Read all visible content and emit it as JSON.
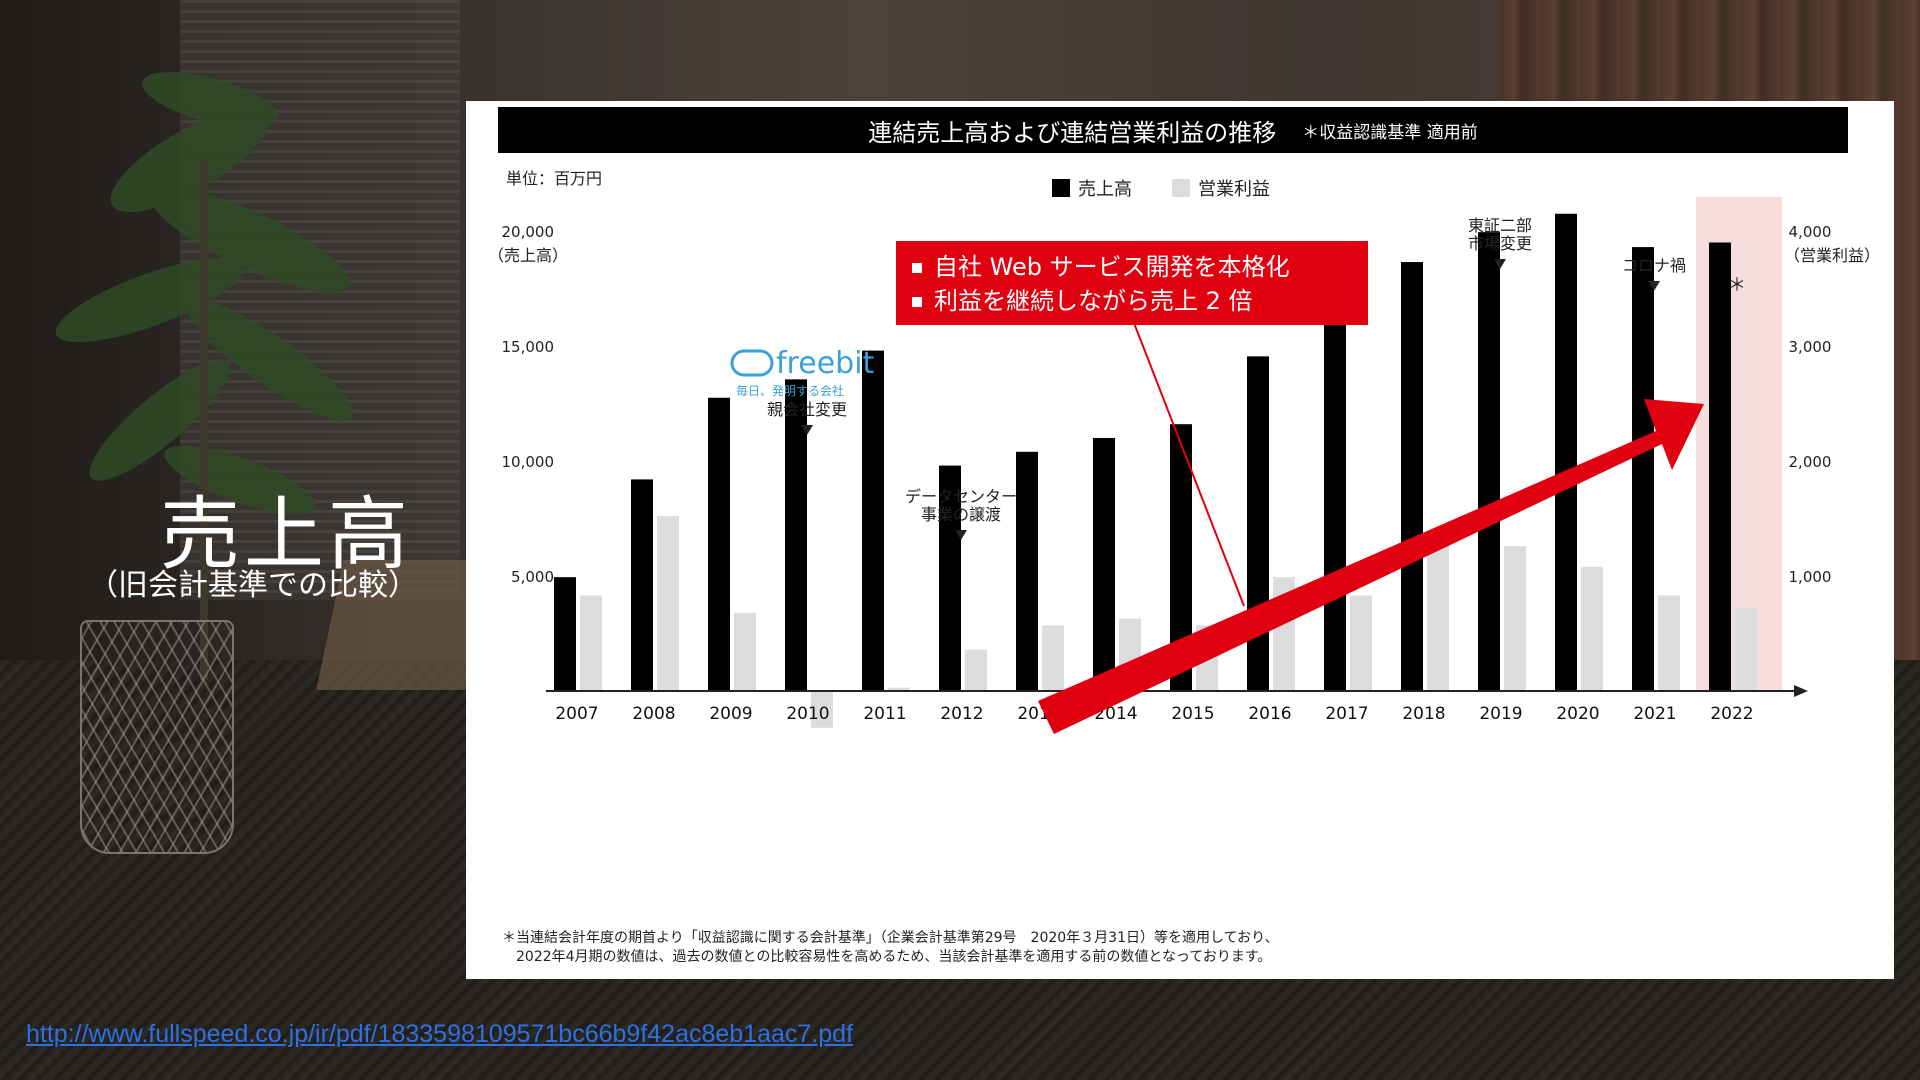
{
  "side": {
    "title": "売上高",
    "subtitle": "（旧会計基準での比較）"
  },
  "link": "http://www.fullspeed.co.jp/ir/pdf/1833598109571bc66b9f42ac8eb1aac7.pdf",
  "colors": {
    "sales": "#000000",
    "profit": "#dcdcdc",
    "highlight": "#f7dede",
    "arrow": "#e0000f",
    "callout": "#e0000f"
  },
  "chart_data": {
    "type": "bar",
    "title": "連結売上高および連結営業利益の推移",
    "title_note": "＊収益認識基準 適用前",
    "unit": "単位：百万円",
    "ylabel_left": "（売上高）",
    "ylabel_right": "（営業利益）",
    "ylim_left": [
      0,
      20000
    ],
    "ylim_right": [
      0,
      4000
    ],
    "yticks_left": [
      "5,000",
      "10,000",
      "15,000",
      "20,000"
    ],
    "yticks_right": [
      "1,000",
      "2,000",
      "3,000",
      "4,000"
    ],
    "categories": [
      "2007",
      "2008",
      "2009",
      "2010",
      "2011",
      "2012",
      "2013",
      "2014",
      "2015",
      "2016",
      "2017",
      "2018",
      "2019",
      "2020",
      "2021",
      "2022"
    ],
    "series": [
      {
        "name": "売上高",
        "axis": "left",
        "values": [
          4950,
          9200,
          12750,
          13550,
          14800,
          9800,
          10400,
          11000,
          11600,
          14550,
          17550,
          18650,
          19950,
          20750,
          19300,
          19500
        ]
      },
      {
        "name": "営業利益",
        "axis": "right",
        "values": [
          830,
          1520,
          680,
          -320,
          30,
          360,
          570,
          630,
          570,
          990,
          830,
          1320,
          1260,
          1080,
          830,
          720
        ]
      }
    ],
    "annotations": [
      {
        "label": "親会社変更",
        "category": "2010"
      },
      {
        "label": "データセンター",
        "label2": "事業の譲渡",
        "category": "2012"
      },
      {
        "label": "東証二部",
        "label2": "市場変更",
        "category": "2019"
      },
      {
        "label": "コロナ禍",
        "category": "2021"
      },
      {
        "label": "＊",
        "category": "2022"
      }
    ],
    "callout": [
      "自社 Web サービス開発を本格化",
      "利益を継続しながら売上 2 倍"
    ],
    "logo": {
      "text": "freebit",
      "tagline": "毎日、発明する会社"
    },
    "highlight_category": "2022",
    "footnote": [
      "＊当連結会計年度の期首より「収益認識に関する会計基準」（企業会計基準第29号　2020年３月31日）等を適用しており、",
      "2022年4月期の数値は、過去の数値との比較容易性を高めるため、当該会計基準を適用する前の数値となっております。"
    ]
  }
}
